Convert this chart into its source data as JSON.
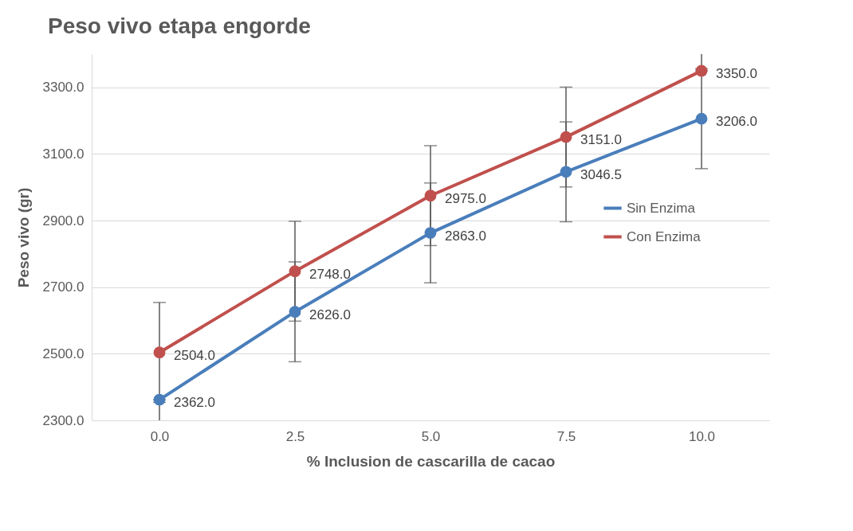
{
  "chart_data": {
    "type": "line",
    "title": "Peso vivo etapa engorde",
    "xlabel": "% Inclusion de cascarilla de cacao",
    "ylabel": "Peso vivo (gr)",
    "categories": [
      "0.0",
      "2.5",
      "5.0",
      "7.5",
      "10.0"
    ],
    "series": [
      {
        "name": "Sin Enzima",
        "color": "#4a7ebb",
        "values": [
          2362,
          2626,
          2863,
          3046.5,
          3206
        ],
        "value_labels": [
          "2362.0",
          "2626.0",
          "2863.0",
          "3046.5",
          "3206.0"
        ],
        "errors": [
          [
            2300,
            2362
          ],
          150,
          150,
          150,
          150
        ]
      },
      {
        "name": "Con Enzima",
        "color": "#c0504d",
        "values": [
          2504,
          2748,
          2975,
          3151,
          3350
        ],
        "value_labels": [
          "2504.0",
          "2748.0",
          "2975.0",
          "3151.0",
          "3350.0"
        ],
        "errors": [
          150,
          150,
          150,
          150,
          [
            3350,
            3400
          ]
        ]
      }
    ],
    "ylim": [
      2300,
      3400
    ],
    "yticks": [
      {
        "value": 2300,
        "label": "2300.0"
      },
      {
        "value": 2500,
        "label": "2500.0"
      },
      {
        "value": 2700,
        "label": "2700.0"
      },
      {
        "value": 2900,
        "label": "2900.0"
      },
      {
        "value": 3100,
        "label": "3100.0"
      },
      {
        "value": 3300,
        "label": "3300.0"
      }
    ],
    "grid": "y",
    "legend": "right",
    "marker": "circle"
  }
}
